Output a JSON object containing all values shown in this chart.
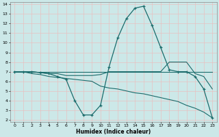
{
  "xlabel": "Humidex (Indice chaleur)",
  "bg_color": "#cce8e8",
  "grid_color": "#aad4d4",
  "line_color": "#1a6b6b",
  "xlim": [
    -0.5,
    23.5
  ],
  "ylim": [
    1.8,
    14.2
  ],
  "xticks": [
    0,
    1,
    2,
    3,
    4,
    5,
    6,
    7,
    8,
    9,
    10,
    11,
    12,
    13,
    14,
    15,
    16,
    17,
    18,
    19,
    20,
    21,
    22,
    23
  ],
  "yticks": [
    2,
    3,
    4,
    5,
    6,
    7,
    8,
    9,
    10,
    11,
    12,
    13,
    14
  ],
  "s1_x": [
    0,
    1,
    2,
    3,
    4,
    5,
    6,
    7,
    8,
    9,
    10,
    11,
    12,
    13,
    14,
    15,
    16,
    17,
    18,
    19,
    20,
    21,
    22,
    23
  ],
  "s1_y": [
    7.0,
    7.0,
    7.0,
    6.9,
    6.8,
    6.5,
    6.2,
    4.0,
    2.5,
    2.5,
    3.5,
    7.5,
    10.5,
    12.5,
    13.6,
    13.8,
    11.8,
    9.5,
    7.2,
    7.0,
    7.0,
    6.5,
    5.2,
    2.2
  ],
  "s2_x": [
    0,
    1,
    2,
    3,
    4,
    5,
    6,
    7,
    8,
    9,
    10,
    11,
    12,
    13,
    14,
    15,
    16,
    17,
    18,
    19,
    20,
    21,
    22,
    23
  ],
  "s2_y": [
    7.0,
    7.0,
    7.0,
    7.0,
    7.0,
    7.0,
    7.0,
    7.0,
    7.0,
    7.0,
    7.0,
    7.0,
    7.0,
    7.0,
    7.0,
    7.0,
    7.0,
    7.0,
    7.0,
    7.0,
    7.0,
    7.0,
    7.0,
    7.0
  ],
  "s3_x": [
    0,
    1,
    2,
    3,
    4,
    5,
    6,
    7,
    8,
    9,
    10,
    11,
    12,
    13,
    14,
    15,
    16,
    17,
    18,
    19,
    20,
    21,
    22,
    23
  ],
  "s3_y": [
    7.0,
    7.0,
    6.8,
    6.7,
    6.5,
    6.4,
    6.3,
    6.2,
    6.1,
    6.0,
    5.5,
    5.3,
    5.2,
    5.0,
    4.8,
    4.7,
    4.5,
    4.3,
    4.1,
    3.9,
    3.5,
    3.2,
    2.8,
    2.2
  ],
  "s4_x": [
    0,
    1,
    2,
    3,
    4,
    5,
    6,
    7,
    8,
    9,
    10,
    11,
    12,
    13,
    14,
    15,
    16,
    17,
    18,
    19,
    20,
    21,
    22,
    23
  ],
  "s4_y": [
    7.0,
    7.0,
    7.0,
    6.9,
    6.8,
    6.8,
    6.6,
    6.6,
    6.6,
    6.6,
    6.7,
    7.0,
    7.0,
    7.0,
    7.0,
    7.0,
    7.0,
    7.0,
    8.0,
    8.0,
    8.0,
    6.8,
    6.5,
    5.2
  ]
}
